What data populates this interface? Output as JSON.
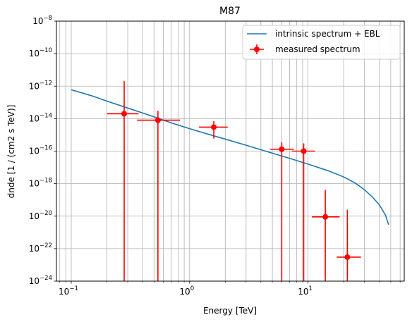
{
  "chart_data": {
    "type": "line",
    "title": "M87",
    "xlabel": "Energy [TeV]",
    "ylabel": "dnde [1 / (cm2 s TeV)]",
    "xscale": "log",
    "yscale": "log",
    "xlim": [
      0.075,
      65
    ],
    "ylim": [
      1e-24,
      1e-08
    ],
    "grid": true,
    "legend_position": "top-right",
    "x_tick_labels": [
      {
        "value": 0.1,
        "base": "10",
        "exp": "−1"
      },
      {
        "value": 1,
        "base": "10",
        "exp": "0"
      },
      {
        "value": 10,
        "base": "10",
        "exp": "1"
      }
    ],
    "y_tick_labels": [
      {
        "value": 1e-24,
        "base": "10",
        "exp": "−24"
      },
      {
        "value": 1e-22,
        "base": "10",
        "exp": "−22"
      },
      {
        "value": 1e-20,
        "base": "10",
        "exp": "−20"
      },
      {
        "value": 1e-18,
        "base": "10",
        "exp": "−18"
      },
      {
        "value": 1e-16,
        "base": "10",
        "exp": "−16"
      },
      {
        "value": 1e-14,
        "base": "10",
        "exp": "−14"
      },
      {
        "value": 1e-12,
        "base": "10",
        "exp": "−12"
      },
      {
        "value": 1e-10,
        "base": "10",
        "exp": "−10"
      },
      {
        "value": 1e-08,
        "base": "10",
        "exp": "−8"
      }
    ],
    "series": [
      {
        "name": "intrinsic spectrum + EBL",
        "kind": "line",
        "color": "#1f77b4",
        "points": [
          [
            0.1,
            6e-13
          ],
          [
            0.15,
            2.5e-13
          ],
          [
            0.2,
            1.2e-13
          ],
          [
            0.3,
            4.5e-14
          ],
          [
            0.5,
            1.3e-14
          ],
          [
            0.7,
            5.5e-15
          ],
          [
            1.0,
            2.4e-15
          ],
          [
            1.5,
            1e-15
          ],
          [
            2.0,
            5.5e-16
          ],
          [
            3.0,
            2.3e-16
          ],
          [
            5.0,
            7.5e-17
          ],
          [
            7.0,
            3.6e-17
          ],
          [
            10.0,
            1.6e-17
          ],
          [
            15.0,
            6e-18
          ],
          [
            20.0,
            2.6e-18
          ],
          [
            25.0,
            1.1e-18
          ],
          [
            30.0,
            4.2e-19
          ],
          [
            35.0,
            1.5e-19
          ],
          [
            40.0,
            5e-20
          ],
          [
            45.0,
            1.2e-20
          ],
          [
            48.0,
            3e-21
          ]
        ]
      },
      {
        "name": "measured spectrum",
        "kind": "errorbar",
        "color": "#ff0000",
        "points": [
          {
            "x": 0.28,
            "xerr": [
              0.2,
              0.37
            ],
            "y": 2e-14,
            "yerr": [
              1e-24,
              2e-12
            ]
          },
          {
            "x": 0.54,
            "xerr": [
              0.36,
              0.83
            ],
            "y": 8e-15,
            "yerr": [
              1e-24,
              3e-14
            ]
          },
          {
            "x": 1.6,
            "xerr": [
              1.2,
              2.1
            ],
            "y": 3e-15,
            "yerr": [
              6e-16,
              7e-15
            ]
          },
          {
            "x": 6.0,
            "xerr": [
              4.8,
              7.6
            ],
            "y": 1.3e-16,
            "yerr": [
              1e-24,
              3.5e-16
            ]
          },
          {
            "x": 9.2,
            "xerr": [
              7.3,
              11.5
            ],
            "y": 1e-16,
            "yerr": [
              1e-24,
              3e-16
            ]
          },
          {
            "x": 14.0,
            "xerr": [
              10.8,
              18.5
            ],
            "y": 9e-21,
            "yerr": [
              1e-24,
              4e-19
            ]
          },
          {
            "x": 21.5,
            "xerr": [
              17.5,
              28.0
            ],
            "y": 3e-23,
            "yerr": [
              1e-24,
              2.5e-20
            ]
          }
        ]
      }
    ]
  }
}
